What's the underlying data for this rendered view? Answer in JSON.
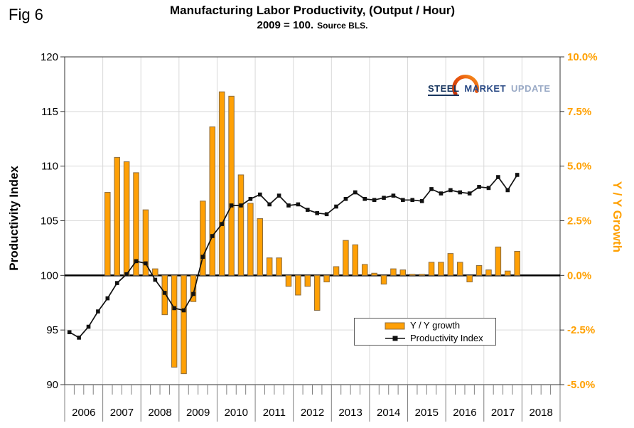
{
  "fig_label": "Fig 6",
  "title": "Manufacturing Labor Productivity, (Output / Hour)",
  "subtitle": "2009 = 100.",
  "subtitle_source": "Source BLS.",
  "logo": {
    "steel": "STEEL",
    "market": "MARKET",
    "update": "UPDATE"
  },
  "legend": {
    "bar_label": "Y / Y growth",
    "line_label": "Productivity Index"
  },
  "colors": {
    "bar_fill": "#FFA005",
    "bar_border": "#8C6D3F",
    "right_axis_text": "#FFA000",
    "line": "#111111",
    "grid": "#D9D9D9",
    "axis_border": "#333333",
    "tick": "#808080",
    "zero_line": "#000000"
  },
  "chart_data": {
    "type": "combo",
    "title": "Manufacturing Labor Productivity, (Output / Hour)",
    "subtitle": "2009 = 100. Source BLS.",
    "x_years": [
      "2006",
      "2007",
      "2008",
      "2009",
      "2010",
      "2011",
      "2012",
      "2013",
      "2014",
      "2015",
      "2016",
      "2017",
      "2018"
    ],
    "quarters_per_year": 4,
    "grid": true,
    "legend_position": "inside-bottom-center",
    "left_axis": {
      "label": "Productivity Index",
      "min": 90,
      "max": 120,
      "step": 5,
      "ticks": [
        90,
        95,
        100,
        105,
        110,
        115,
        120
      ]
    },
    "right_axis": {
      "label": "Y / Y Growth",
      "min": -5,
      "max": 10,
      "step": 2.5,
      "ticks": [
        10,
        7.5,
        5,
        2.5,
        0,
        -2.5,
        -5
      ],
      "tick_labels": [
        "10.0%",
        "7.5%",
        "5.0%",
        "2.5%",
        "0.0%",
        "-2.5%",
        "-5.0%"
      ]
    },
    "series": [
      {
        "name": "Y / Y growth",
        "type": "bar",
        "axis": "right",
        "unit": "percent",
        "start_quarter": "2007-Q1",
        "values": [
          3.8,
          5.4,
          5.2,
          4.7,
          3.0,
          0.3,
          -1.8,
          -4.2,
          -4.5,
          -1.2,
          3.4,
          6.8,
          8.4,
          8.2,
          4.6,
          3.3,
          2.6,
          0.8,
          0.8,
          -0.5,
          -0.9,
          -0.5,
          -1.6,
          -0.3,
          0.4,
          1.6,
          1.4,
          0.5,
          0.1,
          -0.4,
          0.3,
          0.25,
          0.05,
          0.05,
          0.6,
          0.6,
          1.0,
          0.6,
          -0.3,
          0.45,
          0.25,
          1.3,
          0.2,
          1.1
        ]
      },
      {
        "name": "Productivity Index",
        "type": "line",
        "axis": "left",
        "unit": "index",
        "start_quarter": "2006-Q1",
        "values": [
          94.8,
          94.3,
          95.3,
          96.7,
          97.9,
          99.3,
          100.1,
          101.3,
          101.1,
          99.6,
          98.4,
          97.0,
          96.8,
          98.3,
          101.7,
          103.6,
          104.7,
          106.4,
          106.4,
          107.0,
          107.4,
          106.5,
          107.3,
          106.4,
          106.5,
          106.0,
          105.7,
          105.6,
          106.3,
          107.0,
          107.6,
          107.0,
          106.9,
          107.1,
          107.3,
          106.9,
          106.9,
          106.8,
          107.9,
          107.5,
          107.8,
          107.6,
          107.5,
          108.1,
          108.0,
          109.0,
          107.8,
          109.2
        ]
      }
    ]
  }
}
